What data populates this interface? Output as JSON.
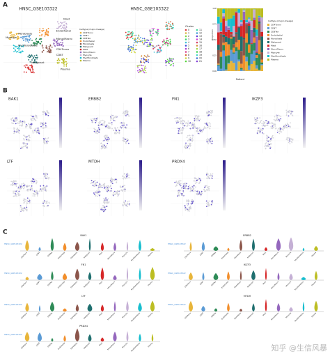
{
  "panel_a": {
    "letter": "A",
    "umap_celltype": {
      "title": "HNSC_GSE103322",
      "labels": [
        "Mast",
        "Endothelial",
        "Myocyte",
        "Fibroblasts",
        "Mono/Macro",
        "Myofibroblasts",
        "CD8T",
        "CD4Tconv",
        "Malignant",
        "Plasma"
      ]
    },
    "celltype_legend": {
      "title": "Celltype (major-lineage)",
      "items": [
        "CD4Tconv",
        "CD8T",
        "CD8Tex",
        "Endothelial",
        "Fibroblasts",
        "Malignant",
        "Mast",
        "Mono/Macro",
        "Myocyte",
        "Myofibroblasts",
        "Plasma"
      ]
    },
    "umap_cluster": {
      "title": "HNSC_GSE103322",
      "legend_title": "Cluster",
      "clusters": [
        "0",
        "1",
        "2",
        "3",
        "4",
        "5",
        "6",
        "7",
        "8",
        "9",
        "10",
        "11",
        "12",
        "13",
        "14",
        "15",
        "16",
        "17",
        "18",
        "19",
        "20",
        "21"
      ]
    },
    "proportion_bar": {
      "y_label": "Proportion",
      "x_label": "Patient",
      "yticks": [
        "0.00",
        "0.25",
        "0.50",
        "0.75",
        "1.00"
      ],
      "legend_title": "Celltype (major-lineage)"
    }
  },
  "panel_b": {
    "letter": "B",
    "genes": [
      "BAK1",
      "ERBB2",
      "FN1",
      "IKZF3",
      "LTF",
      "MTDH",
      "PRDX4"
    ]
  },
  "panel_c": {
    "letter": "C",
    "y_label": "HNSC_GSE103322",
    "genes": [
      "BAK1",
      "ERBB2",
      "FN1",
      "IKZF3",
      "LTF",
      "MTDH",
      "PRDX4"
    ]
  },
  "watermark": "知乎 @生信风暴"
}
